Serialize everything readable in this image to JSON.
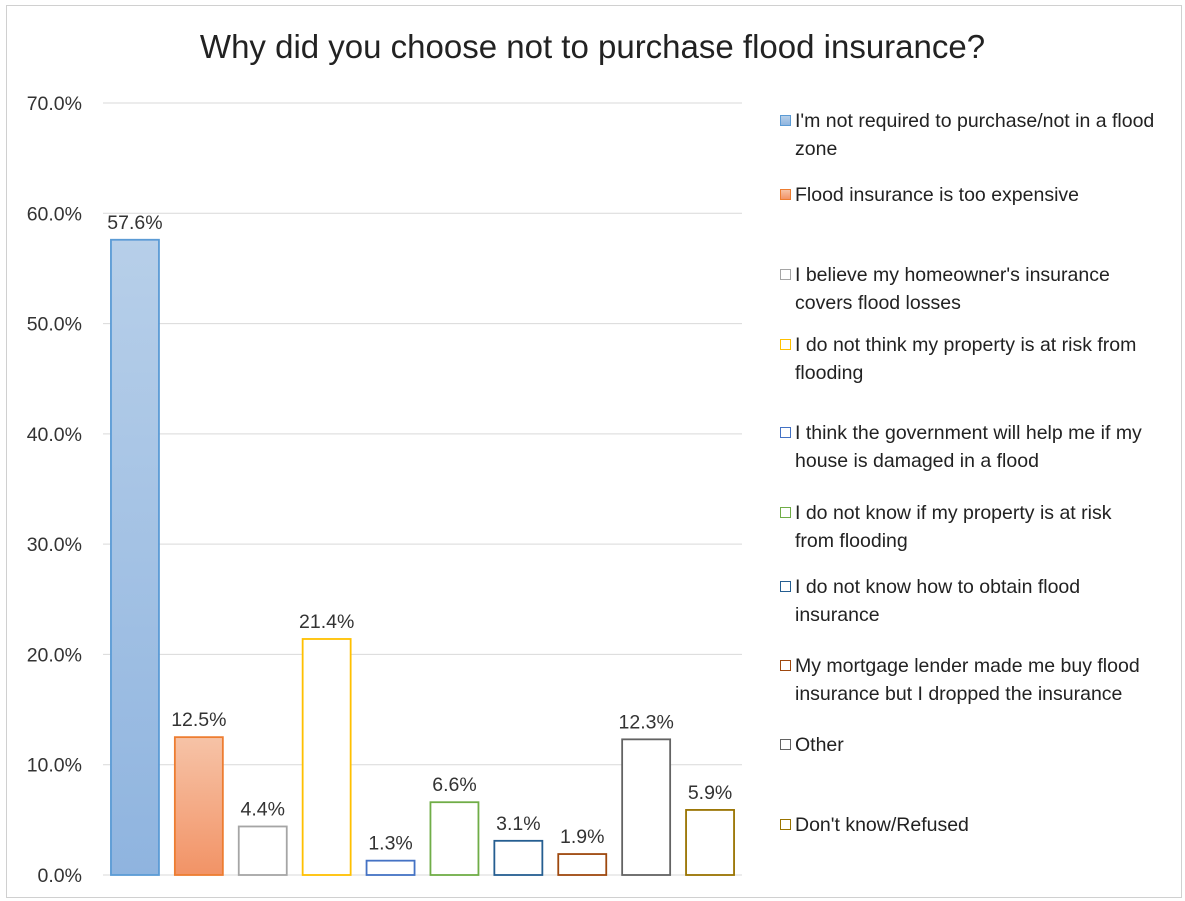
{
  "chart_data": {
    "type": "bar",
    "title": "Why did you choose not to purchase flood insurance?",
    "xlabel": "",
    "ylabel": "",
    "ylim": [
      0,
      0.7
    ],
    "y_tick_labels": [
      "0.0%",
      "10.0%",
      "20.0%",
      "30.0%",
      "40.0%",
      "50.0%",
      "60.0%",
      "70.0%"
    ],
    "grid": true,
    "legend_position": "right",
    "categories": [
      "I'm not required to purchase/not in a flood zone",
      "Flood insurance is too expensive",
      "I believe my homeowner's insurance covers flood losses",
      "I do not think my property is at risk from flooding",
      "I think the government will help me if my house is damaged in a flood",
      "I do not know if my property is at risk from flooding",
      "I do not know how to obtain flood insurance",
      "My mortgage lender made me buy flood insurance but I dropped the insurance",
      "Other",
      "Don't know/Refused"
    ],
    "values": [
      0.576,
      0.125,
      0.044,
      0.214,
      0.013,
      0.066,
      0.031,
      0.019,
      0.123,
      0.059
    ],
    "data_labels": [
      "57.6%",
      "12.5%",
      "4.4%",
      "21.4%",
      "1.3%",
      "6.6%",
      "3.1%",
      "1.9%",
      "12.3%",
      "5.9%"
    ],
    "colors": [
      "#5b9bd5",
      "#ed7d31",
      "#a5a5a5",
      "#ffc000",
      "#4472c4",
      "#70ad47",
      "#255e91",
      "#9e480e",
      "#636363",
      "#997300"
    ],
    "fills": [
      "gradient-blue",
      "gradient-orange",
      "none",
      "none",
      "none",
      "none",
      "none",
      "none",
      "none",
      "none"
    ]
  }
}
